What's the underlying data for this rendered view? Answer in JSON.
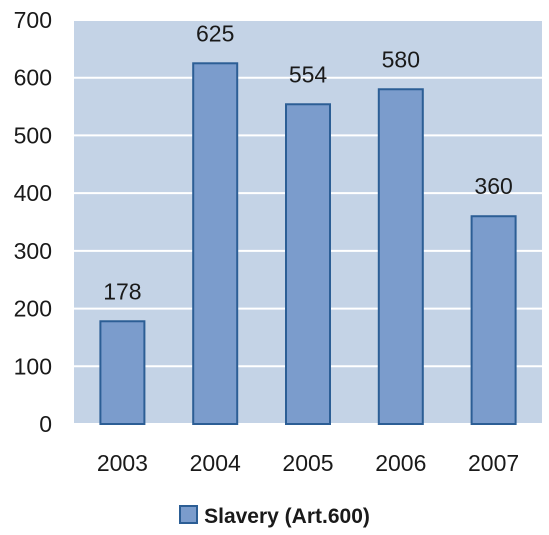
{
  "chart_data": {
    "type": "bar",
    "categories": [
      "2003",
      "2004",
      "2005",
      "2006",
      "2007"
    ],
    "series": [
      {
        "name": "Slavery (Art.600)",
        "values": [
          178,
          625,
          554,
          580,
          360
        ]
      }
    ],
    "data_labels": [
      "178",
      "625",
      "554",
      "580",
      "360"
    ],
    "y_ticks": [
      "0",
      "100",
      "200",
      "300",
      "400",
      "500",
      "600",
      "700"
    ],
    "ylim": [
      0,
      700
    ],
    "grid": true,
    "legend": {
      "position": "bottom",
      "label": "Slavery (Art.600)"
    },
    "colors": {
      "plot_background": "#c4d3e6",
      "bar_fill": "#7b9ccc",
      "bar_stroke": "#2c5e95",
      "grid": "#ffffff"
    }
  }
}
